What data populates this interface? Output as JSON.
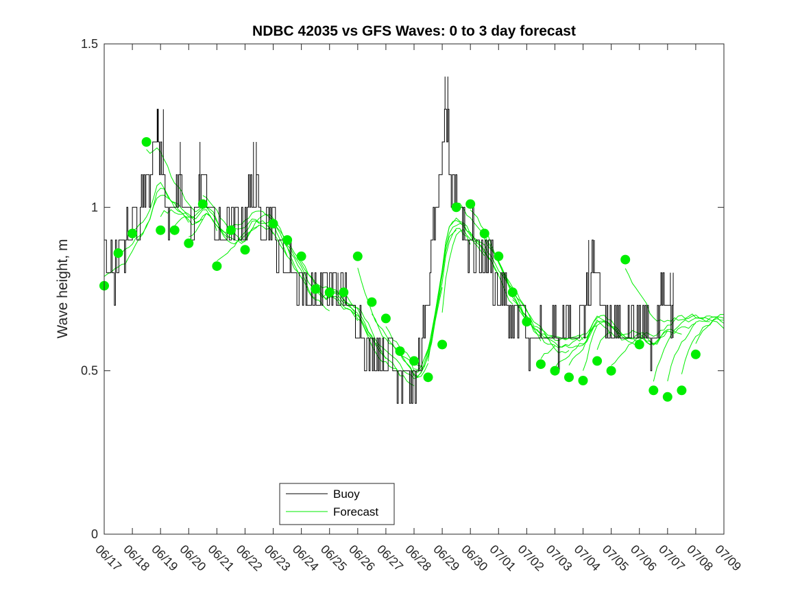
{
  "chart_data": {
    "type": "line",
    "title": "NDBC 42035 vs GFS Waves: 0 to 3 day forecast",
    "xlabel": "",
    "ylabel": "Wave height, m",
    "xlim": [
      "06/17",
      "07/09"
    ],
    "ylim": [
      0,
      1.5
    ],
    "x_tick_labels": [
      "06/17",
      "06/18",
      "06/19",
      "06/20",
      "06/21",
      "06/22",
      "06/23",
      "06/24",
      "06/25",
      "06/26",
      "06/27",
      "06/28",
      "06/29",
      "06/30",
      "07/01",
      "07/02",
      "07/03",
      "07/04",
      "07/05",
      "07/06",
      "07/07",
      "07/08",
      "07/09"
    ],
    "y_ticks": [
      0,
      0.5,
      1,
      1.5
    ],
    "y_tick_labels": [
      "0",
      "0.5",
      "1",
      "1.5"
    ],
    "grid": false,
    "legend_position": "bottom-center",
    "colors": {
      "buoy": "#000000",
      "forecast": "#00ee00"
    },
    "buoy_keypoints": [
      [
        0.0,
        0.9
      ],
      [
        0.3,
        0.8
      ],
      [
        0.6,
        0.85
      ],
      [
        1.0,
        0.95
      ],
      [
        1.3,
        1.0
      ],
      [
        1.6,
        1.1
      ],
      [
        1.8,
        1.25
      ],
      [
        2.0,
        1.15
      ],
      [
        2.2,
        1.0
      ],
      [
        2.5,
        1.0
      ],
      [
        2.8,
        1.0
      ],
      [
        3.1,
        0.95
      ],
      [
        3.3,
        1.0
      ],
      [
        3.5,
        1.1
      ],
      [
        3.7,
        1.0
      ],
      [
        4.0,
        0.9
      ],
      [
        4.3,
        0.9
      ],
      [
        4.6,
        0.95
      ],
      [
        4.9,
        0.95
      ],
      [
        5.2,
        1.05
      ],
      [
        5.5,
        1.0
      ],
      [
        5.8,
        1.0
      ],
      [
        6.0,
        0.92
      ],
      [
        6.3,
        0.85
      ],
      [
        6.6,
        0.8
      ],
      [
        7.0,
        0.75
      ],
      [
        7.3,
        0.72
      ],
      [
        7.6,
        0.72
      ],
      [
        7.9,
        0.75
      ],
      [
        8.2,
        0.75
      ],
      [
        8.6,
        0.7
      ],
      [
        9.0,
        0.65
      ],
      [
        9.4,
        0.55
      ],
      [
        9.8,
        0.55
      ],
      [
        10.2,
        0.55
      ],
      [
        10.5,
        0.5
      ],
      [
        10.8,
        0.5
      ],
      [
        11.0,
        0.45
      ],
      [
        11.2,
        0.55
      ],
      [
        11.45,
        0.68
      ],
      [
        11.7,
        0.95
      ],
      [
        12.0,
        1.1
      ],
      [
        12.1,
        1.3
      ],
      [
        12.3,
        1.1
      ],
      [
        12.6,
        1.0
      ],
      [
        12.9,
        0.9
      ],
      [
        13.2,
        0.88
      ],
      [
        13.5,
        0.85
      ],
      [
        13.8,
        0.8
      ],
      [
        14.0,
        0.75
      ],
      [
        14.4,
        0.68
      ],
      [
        14.8,
        0.65
      ],
      [
        15.2,
        0.6
      ],
      [
        15.7,
        0.6
      ],
      [
        16.2,
        0.6
      ],
      [
        16.6,
        0.65
      ],
      [
        17.0,
        0.65
      ],
      [
        17.2,
        0.72
      ],
      [
        17.3,
        0.85
      ],
      [
        17.5,
        0.75
      ],
      [
        17.8,
        0.65
      ],
      [
        18.2,
        0.6
      ],
      [
        18.6,
        0.65
      ],
      [
        19.0,
        0.65
      ],
      [
        19.4,
        0.6
      ],
      [
        19.8,
        0.7
      ],
      [
        20.2,
        0.7
      ]
    ],
    "buoy_spikes": [
      [
        0.0,
        0.9
      ],
      [
        1.9,
        1.3
      ],
      [
        2.1,
        1.3
      ],
      [
        2.7,
        1.2
      ],
      [
        3.4,
        1.2
      ],
      [
        5.3,
        1.2
      ],
      [
        5.4,
        1.2
      ],
      [
        7.2,
        0.8
      ],
      [
        8.0,
        0.8
      ],
      [
        8.3,
        0.8
      ],
      [
        9.1,
        0.6
      ],
      [
        12.1,
        1.4
      ],
      [
        12.2,
        1.4
      ],
      [
        13.6,
        0.9
      ],
      [
        14.2,
        0.8
      ],
      [
        17.2,
        0.9
      ],
      [
        17.4,
        0.9
      ],
      [
        19.8,
        0.8
      ],
      [
        20.1,
        0.8
      ],
      [
        20.2,
        0.8
      ]
    ],
    "forecast_points": [
      [
        0.0,
        0.76
      ],
      [
        0.5,
        0.86
      ],
      [
        1.0,
        0.92
      ],
      [
        1.5,
        1.2
      ],
      [
        2.0,
        0.93
      ],
      [
        2.5,
        0.93
      ],
      [
        3.0,
        0.89
      ],
      [
        3.5,
        1.01
      ],
      [
        4.0,
        0.82
      ],
      [
        4.5,
        0.93
      ],
      [
        5.0,
        0.87
      ],
      [
        6.0,
        0.95
      ],
      [
        6.5,
        0.9
      ],
      [
        7.0,
        0.85
      ],
      [
        7.5,
        0.75
      ],
      [
        8.0,
        0.74
      ],
      [
        8.5,
        0.74
      ],
      [
        9.0,
        0.85
      ],
      [
        9.5,
        0.71
      ],
      [
        10.0,
        0.66
      ],
      [
        10.5,
        0.56
      ],
      [
        11.0,
        0.53
      ],
      [
        11.5,
        0.48
      ],
      [
        12.0,
        0.58
      ],
      [
        12.5,
        1.0
      ],
      [
        13.0,
        1.01
      ],
      [
        13.5,
        0.92
      ],
      [
        14.0,
        0.85
      ],
      [
        14.5,
        0.74
      ],
      [
        15.0,
        0.65
      ],
      [
        15.5,
        0.52
      ],
      [
        16.0,
        0.5
      ],
      [
        16.5,
        0.48
      ],
      [
        17.0,
        0.47
      ],
      [
        17.5,
        0.53
      ],
      [
        18.0,
        0.5
      ],
      [
        18.5,
        0.84
      ],
      [
        19.0,
        0.58
      ],
      [
        19.5,
        0.44
      ],
      [
        20.0,
        0.42
      ],
      [
        20.5,
        0.44
      ],
      [
        21.0,
        0.55
      ]
    ],
    "series": [
      {
        "name": "Buoy"
      },
      {
        "name": "Forecast"
      }
    ]
  }
}
